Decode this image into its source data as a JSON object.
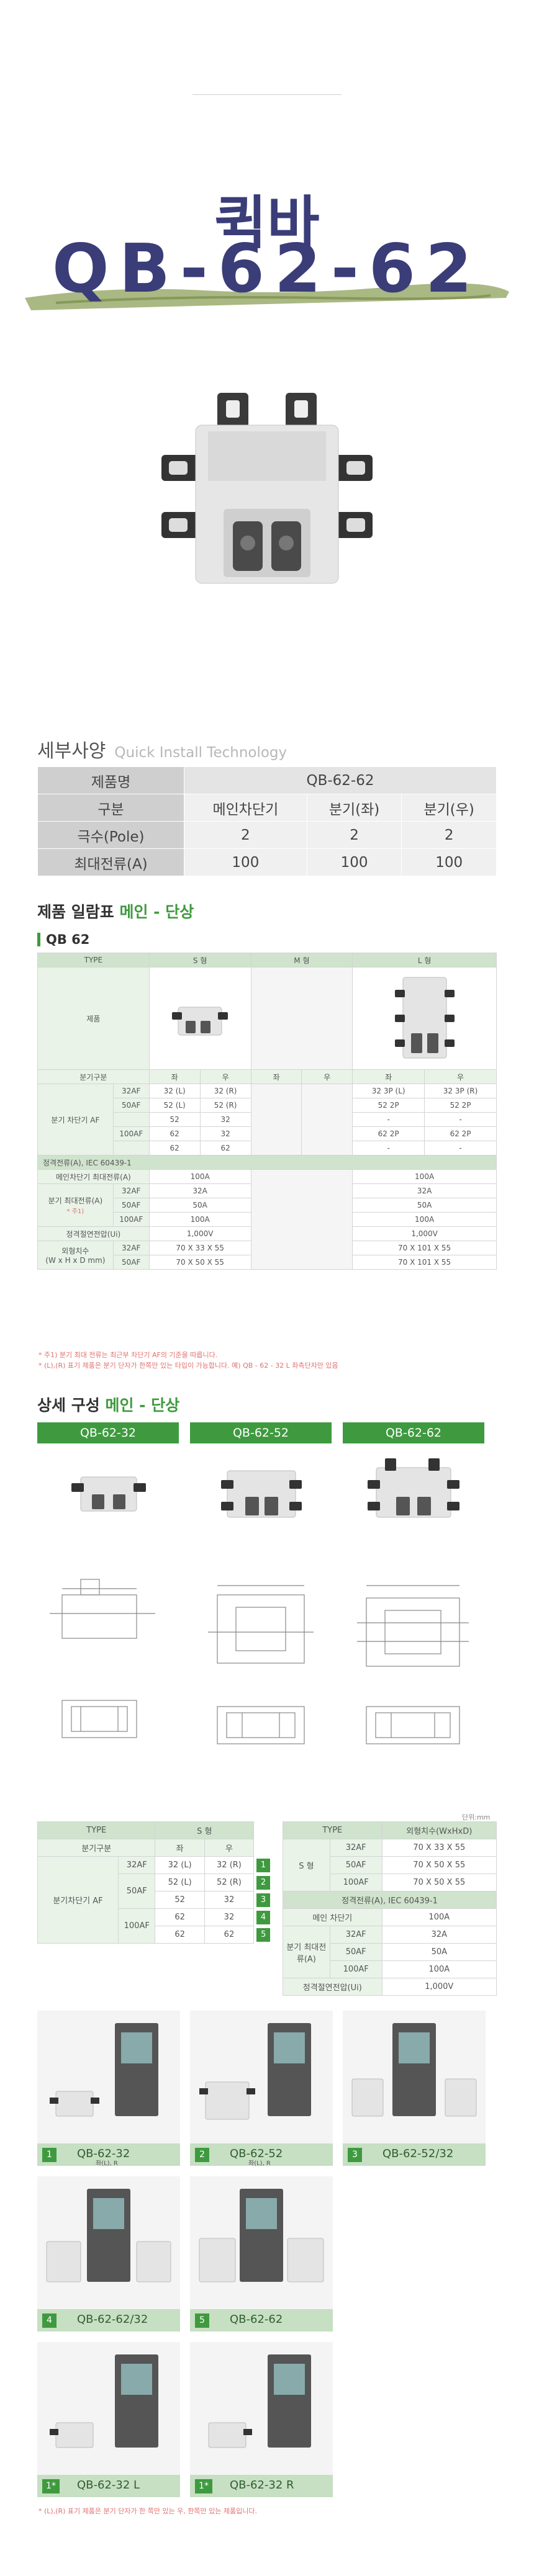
{
  "hero": {
    "title": "퀵바",
    "model": "QB-62-62"
  },
  "spec": {
    "heading": "세부사양",
    "heading_en": "Quick Install Technology",
    "rows": [
      [
        "제품명",
        "QB-62-62"
      ],
      [
        "구분",
        "메인차단기",
        "분기(좌)",
        "분기(우)"
      ],
      [
        "극수(Pole)",
        "2",
        "2",
        "2"
      ],
      [
        "최대전류(A)",
        "100",
        "100",
        "100"
      ]
    ]
  },
  "lineup": {
    "title": "제품 일람표",
    "title_accent": "메인 - 단상",
    "sub": "QB 62",
    "hdr": {
      "type": "TYPE",
      "s": "S 형",
      "m": "M 형",
      "l": "L 형"
    },
    "product_label": "제품",
    "branch_div": "분기구분",
    "left": "좌",
    "right": "우",
    "branch_af": "분기 차단기 AF",
    "af": {
      "a32": "32AF",
      "a50": "50AF",
      "a100": "100AF"
    },
    "s": [
      [
        "32 (L)",
        "32 (R)"
      ],
      [
        "52 (L)",
        "52 (R)"
      ],
      [
        "52",
        "32"
      ],
      [
        "62",
        "32"
      ],
      [
        "62",
        "62"
      ]
    ],
    "l": [
      [
        "32 3P (L)",
        "32 3P (R)"
      ],
      [
        "52 2P",
        "52 2P"
      ],
      [
        "-",
        "-"
      ],
      [
        "62 2P",
        "62 2P"
      ],
      [
        "-",
        "-"
      ]
    ],
    "rating": "정격전류(A), IEC 60439-1",
    "main_max": "메인차단기 최대전류(A)",
    "branch_max": "분기 최대전류(A)",
    "note_mark": "* 주1)",
    "cur_s": [
      "100A",
      "32A",
      "50A",
      "100A"
    ],
    "cur_l": [
      "100A",
      "32A",
      "50A",
      "100A"
    ],
    "voltage": "정격절연전압(Ui)",
    "volt_s": "1,000V",
    "volt_l": "1,000V",
    "dims": "외형치수",
    "dims_unit": "(W x H x D mm)",
    "dims_s": [
      "70 X 33 X 55",
      "70 X 50 X 55",
      "70 X 50 X 55"
    ],
    "dims_l": [
      "70 X 101 X 55",
      "70 X 101 X 55",
      "70 X 101 X 55"
    ],
    "note1": "* 주1) 분기 최대 전류는 최근부 차단기 AF의 기준을 따릅니다.",
    "note2": "* (L),(R) 표기 제품은 분기 단자가 한쪽만 있는 타입이 가능합니다. 예) QB - 62 - 32 L 좌측단자만 있음"
  },
  "detail": {
    "title": "상세 구성",
    "title_accent": "메인 - 단상",
    "cols": [
      "QB-62-32",
      "QB-62-52",
      "QB-62-62"
    ],
    "unit": "단위:mm",
    "left_table": {
      "type": "TYPE",
      "s": "S 형",
      "div": "분기구분",
      "l": "좌",
      "r": "우",
      "af": "분기차단기 AF",
      "a32": "32AF",
      "a50": "50AF",
      "a100": "100AF",
      "rows": [
        [
          "32 (L)",
          "32 (R)",
          "1"
        ],
        [
          "52 (L)",
          "52 (R)",
          "2"
        ],
        [
          "52",
          "32",
          "3"
        ],
        [
          "62",
          "32",
          "4"
        ],
        [
          "62",
          "62",
          "5"
        ]
      ]
    },
    "right_table": {
      "type": "TYPE",
      "dims_h": "외형치수(WxHxD)",
      "s": "S 형",
      "d": [
        [
          "32AF",
          "70 X 33 X 55"
        ],
        [
          "50AF",
          "70 X 50 X 55"
        ],
        [
          "100AF",
          "70 X 50 X 55"
        ]
      ],
      "rating": "정격전류(A), IEC 60439-1",
      "main": "메인 차단기",
      "main_v": "100A",
      "branch": "분기 최대전류(A)",
      "b": [
        [
          "32AF",
          "32A"
        ],
        [
          "50AF",
          "50A"
        ],
        [
          "100AF",
          "100A"
        ]
      ],
      "volt": "정격절연전압(Ui)",
      "volt_v": "1,000V"
    }
  },
  "cards": [
    {
      "n": "1",
      "label": "QB-62-32",
      "sub": "좌(L), R"
    },
    {
      "n": "2",
      "label": "QB-62-52",
      "sub": "좌(L), R"
    },
    {
      "n": "3",
      "label": "QB-62-52/32",
      "sub": ""
    },
    {
      "n": "4",
      "label": "QB-62-62/32",
      "sub": ""
    },
    {
      "n": "5",
      "label": "QB-62-62",
      "sub": ""
    },
    {
      "n": "1*",
      "label": "QB-62-32 L",
      "sub": ""
    },
    {
      "n": "1*",
      "label": "QB-62-32 R",
      "sub": ""
    }
  ],
  "footnote": "* (L),(R) 표기 제품은 분기 단자가 한 쪽만 있는 우, 한쪽만 있는 제품입니다.",
  "colors": {
    "accent": "#3f9a3f",
    "title": "#3a3d78"
  }
}
